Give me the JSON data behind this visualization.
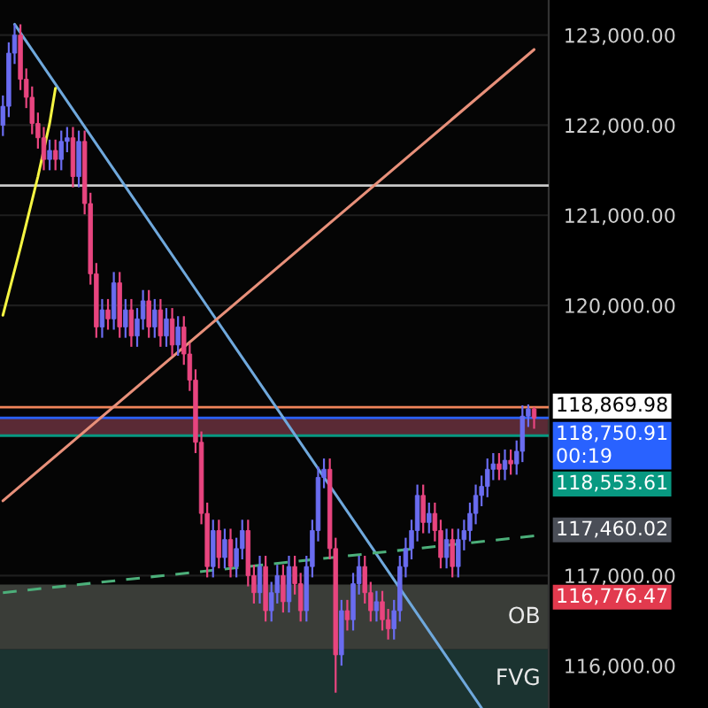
{
  "chart_data": {
    "type": "candlestick",
    "categories": [
      null,
      null,
      null,
      null,
      null,
      null,
      null,
      null,
      null,
      null,
      null,
      null,
      null,
      null,
      null,
      null,
      null,
      null,
      null,
      null,
      null,
      null,
      null,
      null,
      null,
      null,
      null,
      null,
      null,
      null,
      null,
      null,
      null,
      null,
      null,
      null,
      null,
      null,
      null,
      null,
      null,
      null,
      null,
      null,
      null,
      null,
      null,
      null,
      null,
      null,
      null,
      null,
      null,
      null,
      null,
      null,
      null,
      null,
      null,
      null,
      null,
      null,
      null,
      null,
      null,
      null,
      null,
      null,
      null,
      null,
      null,
      null,
      null,
      null,
      null,
      null,
      null,
      null,
      null,
      null,
      null,
      null,
      null,
      null,
      null,
      null,
      null,
      null,
      null,
      null,
      null,
      null
    ],
    "ohlc": [
      [
        122000,
        122330,
        121880,
        122210
      ],
      [
        122210,
        122920,
        122090,
        122800
      ],
      [
        122800,
        123120,
        122680,
        123000
      ],
      [
        123000,
        123120,
        122390,
        122510
      ],
      [
        122510,
        122630,
        122190,
        122310
      ],
      [
        122310,
        122430,
        121900,
        122020
      ],
      [
        122020,
        122140,
        121740,
        121860
      ],
      [
        121860,
        121980,
        121500,
        121620
      ],
      [
        121620,
        121840,
        121500,
        121720
      ],
      [
        121720,
        121840,
        121500,
        121620
      ],
      [
        121620,
        121940,
        121500,
        121820
      ],
      [
        121820,
        121980,
        121700,
        121860
      ],
      [
        121860,
        121980,
        121310,
        121430
      ],
      [
        121430,
        121940,
        121310,
        121820
      ],
      [
        121820,
        121940,
        121010,
        121130
      ],
      [
        121130,
        121250,
        120230,
        120350
      ],
      [
        120350,
        120470,
        119640,
        119760
      ],
      [
        119760,
        120070,
        119640,
        119950
      ],
      [
        119950,
        120070,
        119730,
        119850
      ],
      [
        119850,
        120370,
        119730,
        120250
      ],
      [
        120250,
        120370,
        119640,
        119760
      ],
      [
        119760,
        120070,
        119640,
        119950
      ],
      [
        119950,
        120070,
        119540,
        119660
      ],
      [
        119660,
        119970,
        119540,
        119850
      ],
      [
        119850,
        120170,
        119730,
        120050
      ],
      [
        120050,
        120170,
        119640,
        119760
      ],
      [
        119760,
        120070,
        119640,
        119950
      ],
      [
        119950,
        120070,
        119540,
        119660
      ],
      [
        119660,
        119970,
        119540,
        119850
      ],
      [
        119850,
        119970,
        119440,
        119560
      ],
      [
        119560,
        119880,
        119440,
        119760
      ],
      [
        119760,
        119880,
        119340,
        119460
      ],
      [
        119460,
        119580,
        119050,
        119170
      ],
      [
        119170,
        119290,
        118360,
        118480
      ],
      [
        118480,
        118600,
        117570,
        117690
      ],
      [
        117690,
        117810,
        116980,
        117100
      ],
      [
        117100,
        117620,
        116980,
        117500
      ],
      [
        117500,
        117620,
        117080,
        117200
      ],
      [
        117200,
        117520,
        117080,
        117400
      ],
      [
        117400,
        117520,
        116980,
        117100
      ],
      [
        117100,
        117420,
        116980,
        117300
      ],
      [
        117300,
        117620,
        117180,
        117500
      ],
      [
        117500,
        117620,
        116880,
        117000
      ],
      [
        117000,
        117120,
        116690,
        116810
      ],
      [
        116810,
        117220,
        116690,
        117100
      ],
      [
        117100,
        117220,
        116490,
        116610
      ],
      [
        116610,
        116930,
        116490,
        116810
      ],
      [
        116810,
        117120,
        116690,
        117000
      ],
      [
        117000,
        117120,
        116590,
        116710
      ],
      [
        116710,
        117220,
        116590,
        117100
      ],
      [
        117100,
        117220,
        116790,
        116910
      ],
      [
        116910,
        117030,
        116490,
        116610
      ],
      [
        116610,
        117220,
        116490,
        117100
      ],
      [
        117100,
        117620,
        116980,
        117500
      ],
      [
        117500,
        118210,
        117380,
        118090
      ],
      [
        118090,
        118300,
        117970,
        118180
      ],
      [
        118180,
        118300,
        117180,
        117300
      ],
      [
        117300,
        117420,
        115700,
        116120
      ],
      [
        116120,
        116730,
        116000,
        116610
      ],
      [
        116610,
        116730,
        116390,
        116510
      ],
      [
        116510,
        117030,
        116390,
        116910
      ],
      [
        116910,
        117220,
        116790,
        117100
      ],
      [
        117100,
        117220,
        116690,
        116810
      ],
      [
        116810,
        116930,
        116490,
        116610
      ],
      [
        116610,
        116830,
        116490,
        116710
      ],
      [
        116710,
        116830,
        116390,
        116510
      ],
      [
        116510,
        116630,
        116290,
        116410
      ],
      [
        116410,
        116730,
        116290,
        116610
      ],
      [
        116610,
        117220,
        116490,
        117100
      ],
      [
        117100,
        117420,
        116980,
        117300
      ],
      [
        117300,
        117620,
        117180,
        117500
      ],
      [
        117500,
        118010,
        117380,
        117890
      ],
      [
        117890,
        118010,
        117470,
        117590
      ],
      [
        117590,
        117810,
        117470,
        117690
      ],
      [
        117690,
        117810,
        117380,
        117500
      ],
      [
        117500,
        117620,
        117080,
        117200
      ],
      [
        117200,
        117520,
        117080,
        117400
      ],
      [
        117400,
        117520,
        116980,
        117100
      ],
      [
        117100,
        117520,
        116980,
        117400
      ],
      [
        117400,
        117620,
        117280,
        117500
      ],
      [
        117500,
        117810,
        117380,
        117690
      ],
      [
        117690,
        118010,
        117570,
        117890
      ],
      [
        117890,
        118110,
        117770,
        117990
      ],
      [
        117990,
        118300,
        117870,
        118180
      ],
      [
        118180,
        118360,
        118060,
        118240
      ],
      [
        118240,
        118360,
        118060,
        118180
      ],
      [
        118180,
        118400,
        118060,
        118280
      ],
      [
        118280,
        118400,
        118120,
        118240
      ],
      [
        118240,
        118500,
        118120,
        118380
      ],
      [
        118380,
        118890,
        118260,
        118770
      ],
      [
        118770,
        118900,
        118650,
        118850
      ],
      [
        118850,
        118870,
        118630,
        118750
      ]
    ],
    "colors": [
      "#6a6cf0",
      "#6a6cf0",
      "#6a6cf0",
      "#e8457f",
      "#e8457f",
      "#e8457f",
      "#e8457f",
      "#e8457f",
      "#6a6cf0",
      "#e8457f",
      "#6a6cf0",
      "#6a6cf0",
      "#e8457f",
      "#6a6cf0",
      "#e8457f",
      "#e8457f",
      "#e8457f",
      "#6a6cf0",
      "#e8457f",
      "#6a6cf0",
      "#e8457f",
      "#6a6cf0",
      "#e8457f",
      "#6a6cf0",
      "#6a6cf0",
      "#e8457f",
      "#6a6cf0",
      "#e8457f",
      "#6a6cf0",
      "#e8457f",
      "#6a6cf0",
      "#e8457f",
      "#e8457f",
      "#e8457f",
      "#e8457f",
      "#e8457f",
      "#6a6cf0",
      "#e8457f",
      "#6a6cf0",
      "#e8457f",
      "#6a6cf0",
      "#6a6cf0",
      "#e8457f",
      "#e8457f",
      "#6a6cf0",
      "#e8457f",
      "#6a6cf0",
      "#6a6cf0",
      "#e8457f",
      "#6a6cf0",
      "#e8457f",
      "#e8457f",
      "#6a6cf0",
      "#6a6cf0",
      "#6a6cf0",
      "#6a6cf0",
      "#e8457f",
      "#e8457f",
      "#6a6cf0",
      "#e8457f",
      "#6a6cf0",
      "#6a6cf0",
      "#e8457f",
      "#e8457f",
      "#6a6cf0",
      "#e8457f",
      "#e8457f",
      "#6a6cf0",
      "#6a6cf0",
      "#6a6cf0",
      "#6a6cf0",
      "#6a6cf0",
      "#e8457f",
      "#6a6cf0",
      "#e8457f",
      "#e8457f",
      "#6a6cf0",
      "#e8457f",
      "#6a6cf0",
      "#6a6cf0",
      "#6a6cf0",
      "#6a6cf0",
      "#6a6cf0",
      "#6a6cf0",
      "#6a6cf0",
      "#e8457f",
      "#6a6cf0",
      "#e8457f",
      "#6a6cf0",
      "#6a6cf0",
      "#6a6cf0",
      "#e8457f"
    ],
    "series": [
      {
        "type": "line",
        "color": "#6fa8dc",
        "values": [
          null,
          null,
          123120,
          null,
          null,
          null,
          null,
          null,
          null,
          null,
          null,
          null,
          null,
          null,
          null,
          null,
          null,
          null,
          null,
          null,
          null,
          null,
          null,
          null,
          null,
          null,
          null,
          null,
          null,
          null,
          null,
          null,
          null,
          null,
          null,
          null,
          null,
          null,
          null,
          null,
          null,
          null,
          null,
          null,
          null,
          null,
          null,
          null,
          null,
          null,
          null,
          null,
          null,
          null,
          null,
          null,
          null,
          null,
          null,
          null,
          null,
          null,
          null,
          null,
          null,
          null,
          null,
          null,
          null,
          null,
          null,
          null,
          null,
          null,
          null,
          null,
          null,
          null,
          null,
          null,
          null,
          null,
          115530,
          null,
          null,
          null,
          null,
          null,
          null,
          null,
          null,
          null
        ]
      },
      {
        "type": "line",
        "color": "#e8907a",
        "values": [
          117830,
          null,
          null,
          null,
          null,
          null,
          null,
          null,
          null,
          null,
          null,
          null,
          null,
          null,
          null,
          null,
          null,
          null,
          null,
          null,
          null,
          null,
          null,
          null,
          null,
          null,
          null,
          null,
          null,
          null,
          null,
          null,
          null,
          null,
          null,
          null,
          null,
          null,
          null,
          null,
          null,
          null,
          null,
          null,
          null,
          null,
          null,
          null,
          null,
          null,
          null,
          null,
          null,
          null,
          null,
          null,
          null,
          null,
          null,
          null,
          null,
          null,
          null,
          null,
          null,
          null,
          null,
          null,
          null,
          null,
          null,
          null,
          null,
          null,
          null,
          null,
          null,
          null,
          null,
          null,
          null,
          null,
          null,
          null,
          null,
          null,
          null,
          null,
          null,
          null,
          null,
          122840
        ]
      },
      {
        "type": "line",
        "color": "#f5f542",
        "values": [
          119890,
          null,
          null,
          120640,
          null,
          null,
          121430,
          null,
          122020,
          122410,
          null,
          null,
          null,
          null,
          null,
          null,
          null,
          null,
          null,
          null,
          null,
          null,
          null,
          null,
          null,
          null,
          null,
          null,
          null,
          null,
          null,
          null,
          null,
          null,
          null,
          null,
          null,
          null,
          null,
          null,
          null,
          null,
          null,
          null,
          null,
          null,
          null,
          null,
          null,
          null,
          null,
          null,
          null,
          null,
          null,
          null,
          null,
          null,
          null,
          null,
          null,
          null,
          null,
          null,
          null,
          null,
          null,
          null,
          null,
          null,
          null,
          null,
          null,
          null,
          null,
          null,
          null,
          null,
          null,
          null,
          null,
          null,
          null,
          null,
          null,
          null,
          null,
          null,
          null,
          null,
          null,
          null
        ]
      },
      {
        "type": "line",
        "color": "#4caf7a",
        "line_style": "dashed",
        "values": [
          116810,
          null,
          null,
          null,
          null,
          null,
          null,
          null,
          null,
          null,
          null,
          null,
          null,
          null,
          null,
          null,
          null,
          null,
          null,
          null,
          null,
          null,
          null,
          null,
          null,
          null,
          null,
          null,
          null,
          null,
          null,
          null,
          null,
          null,
          null,
          null,
          null,
          null,
          null,
          null,
          null,
          null,
          null,
          null,
          null,
          null,
          null,
          null,
          null,
          null,
          null,
          null,
          null,
          null,
          null,
          null,
          null,
          null,
          null,
          null,
          null,
          null,
          null,
          null,
          null,
          null,
          null,
          null,
          null,
          null,
          null,
          null,
          null,
          null,
          null,
          null,
          null,
          null,
          null,
          null,
          null,
          null,
          null,
          null,
          null,
          null,
          null,
          null,
          null,
          null,
          null,
          117440
        ]
      }
    ],
    "ylim": [
      115530,
      123390
    ],
    "yticks": [
      {
        "value": 123000,
        "label": "123,000.00"
      },
      {
        "value": 122000,
        "label": "122,000.00"
      },
      {
        "value": 121000,
        "label": "121,000.00"
      },
      {
        "value": 120000,
        "label": "120,000.00"
      },
      {
        "value": 117000,
        "label": "117,000.00"
      },
      {
        "value": 116000,
        "label": "116,000.00"
      }
    ],
    "tick_labels": "y",
    "grid": "y",
    "ref_lines": [
      {
        "axis": "y",
        "value": 121330,
        "color": "#c8c8c8"
      },
      {
        "axis": "y",
        "value": 118869.98,
        "label": "118,869.98",
        "color": "#f0845a"
      },
      {
        "axis": "y",
        "value": 118750.91,
        "label": "118,750.91\n00:19",
        "color": "#2962ff"
      },
      {
        "axis": "y",
        "value": 118553.61,
        "label": "118,553.61",
        "color": "#089981"
      }
    ],
    "bands": [
      {
        "axis": "y",
        "from": 118553.61,
        "to": 118750.91,
        "color": "#5a2a35"
      },
      {
        "axis": "y",
        "from": 116180,
        "to": 116900,
        "label": "OB",
        "color": "#3a3d38"
      },
      {
        "axis": "y",
        "from": 115530,
        "to": 116180,
        "label": "FVG",
        "color": "#1b3330"
      }
    ],
    "annotations": [
      "117,460.02",
      "116,776.47"
    ]
  }
}
